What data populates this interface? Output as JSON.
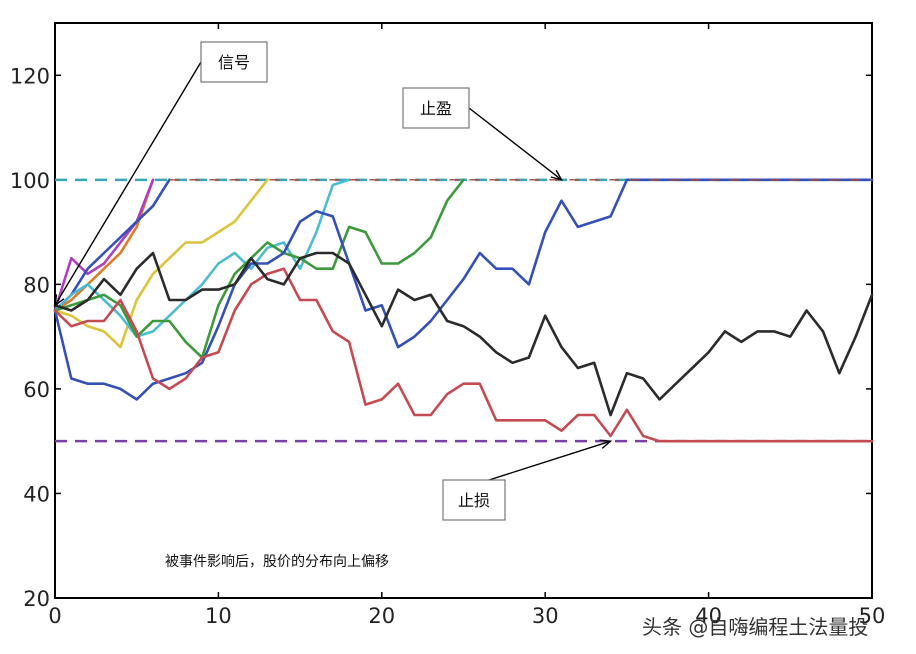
{
  "chart_data": {
    "type": "line",
    "title": "",
    "xlabel": "",
    "ylabel": "",
    "xlim": [
      0,
      50
    ],
    "ylim": [
      20,
      130
    ],
    "xticks": [
      0,
      10,
      20,
      30,
      40,
      50
    ],
    "yticks": [
      20,
      40,
      60,
      80,
      100,
      120
    ],
    "grid": false,
    "reference_lines": [
      {
        "name": "take_profit",
        "y": 100,
        "color": "#3aa6b9",
        "style": "dashed"
      },
      {
        "name": "stop_loss",
        "y": 50,
        "color": "#7b3fa8",
        "style": "dashed"
      }
    ],
    "callouts": [
      {
        "label": "信号",
        "target": [
          0,
          76
        ]
      },
      {
        "label": "止盈",
        "target": [
          31,
          100
        ]
      },
      {
        "label": "止损",
        "target": [
          34,
          50
        ]
      }
    ],
    "annotation": "被事件影响后，股价的分布向上偏移",
    "series": [
      {
        "color": "#e07b2a",
        "values": [
          [
            0,
            75
          ],
          [
            1,
            77
          ],
          [
            2,
            80
          ],
          [
            3,
            83
          ],
          [
            4,
            86
          ],
          [
            5,
            91
          ],
          [
            6,
            100
          ]
        ]
      },
      {
        "color": "#b03fbf",
        "values": [
          [
            0,
            75
          ],
          [
            1,
            85
          ],
          [
            2,
            82
          ],
          [
            3,
            84
          ],
          [
            4,
            88
          ],
          [
            5,
            92
          ],
          [
            6,
            100
          ]
        ]
      },
      {
        "color": "#3550b8",
        "values": [
          [
            0,
            75
          ],
          [
            1,
            78
          ],
          [
            2,
            83
          ],
          [
            3,
            86
          ],
          [
            4,
            89
          ],
          [
            5,
            92
          ],
          [
            6,
            95
          ],
          [
            7,
            100
          ]
        ]
      },
      {
        "color": "#dcc43c",
        "values": [
          [
            0,
            75
          ],
          [
            1,
            74
          ],
          [
            2,
            72
          ],
          [
            3,
            71
          ],
          [
            4,
            68
          ],
          [
            5,
            77
          ],
          [
            6,
            82
          ],
          [
            7,
            85
          ],
          [
            8,
            88
          ],
          [
            9,
            88
          ],
          [
            10,
            90
          ],
          [
            11,
            92
          ],
          [
            12,
            96
          ],
          [
            13,
            100
          ]
        ]
      },
      {
        "color": "#4cbcd0",
        "values": [
          [
            0,
            75
          ],
          [
            1,
            78
          ],
          [
            2,
            80
          ],
          [
            3,
            77
          ],
          [
            4,
            74
          ],
          [
            5,
            70
          ],
          [
            6,
            71
          ],
          [
            7,
            74
          ],
          [
            8,
            77
          ],
          [
            9,
            80
          ],
          [
            10,
            84
          ],
          [
            11,
            86
          ],
          [
            12,
            83
          ],
          [
            13,
            87
          ],
          [
            14,
            88
          ],
          [
            15,
            83
          ],
          [
            16,
            90
          ],
          [
            17,
            99
          ],
          [
            18,
            100
          ]
        ]
      },
      {
        "color": "#3d9a3c",
        "values": [
          [
            0,
            75
          ],
          [
            1,
            76
          ],
          [
            2,
            77
          ],
          [
            3,
            78
          ],
          [
            4,
            76
          ],
          [
            5,
            70
          ],
          [
            6,
            73
          ],
          [
            7,
            73
          ],
          [
            8,
            69
          ],
          [
            9,
            66
          ],
          [
            10,
            76
          ],
          [
            11,
            82
          ],
          [
            12,
            85
          ],
          [
            13,
            88
          ],
          [
            14,
            86
          ],
          [
            15,
            85
          ],
          [
            16,
            83
          ],
          [
            17,
            83
          ],
          [
            18,
            91
          ],
          [
            19,
            90
          ],
          [
            20,
            84
          ],
          [
            21,
            84
          ],
          [
            22,
            86
          ],
          [
            23,
            89
          ],
          [
            24,
            96
          ],
          [
            25,
            100
          ]
        ]
      },
      {
        "color": "#3550b8",
        "values": [
          [
            0,
            75
          ],
          [
            1,
            62
          ],
          [
            2,
            61
          ],
          [
            3,
            61
          ],
          [
            4,
            60
          ],
          [
            5,
            58
          ],
          [
            6,
            61
          ],
          [
            7,
            62
          ],
          [
            8,
            63
          ],
          [
            9,
            65
          ],
          [
            10,
            72
          ],
          [
            11,
            80
          ],
          [
            12,
            84
          ],
          [
            13,
            84
          ],
          [
            14,
            86
          ],
          [
            15,
            92
          ],
          [
            16,
            94
          ],
          [
            17,
            93
          ],
          [
            18,
            84
          ],
          [
            19,
            75
          ],
          [
            20,
            76
          ],
          [
            21,
            68
          ],
          [
            22,
            70
          ],
          [
            23,
            73
          ],
          [
            24,
            77
          ],
          [
            25,
            81
          ],
          [
            26,
            86
          ],
          [
            27,
            83
          ],
          [
            28,
            83
          ],
          [
            29,
            80
          ],
          [
            30,
            90
          ],
          [
            31,
            96
          ],
          [
            32,
            91
          ],
          [
            33,
            92
          ],
          [
            34,
            93
          ],
          [
            35,
            100
          ],
          [
            50,
            100
          ]
        ]
      },
      {
        "color": "#c44b52",
        "values": [
          [
            0,
            75
          ],
          [
            1,
            72
          ],
          [
            2,
            73
          ],
          [
            3,
            73
          ],
          [
            4,
            77
          ],
          [
            5,
            71
          ],
          [
            6,
            62
          ],
          [
            7,
            60
          ],
          [
            8,
            62
          ],
          [
            9,
            66
          ],
          [
            10,
            67
          ],
          [
            11,
            75
          ],
          [
            12,
            80
          ],
          [
            13,
            82
          ],
          [
            14,
            83
          ],
          [
            15,
            77
          ],
          [
            16,
            77
          ],
          [
            17,
            71
          ],
          [
            18,
            69
          ],
          [
            19,
            57
          ],
          [
            20,
            58
          ],
          [
            21,
            61
          ],
          [
            22,
            55
          ],
          [
            23,
            55
          ],
          [
            24,
            59
          ],
          [
            25,
            61
          ],
          [
            26,
            61
          ],
          [
            27,
            54
          ],
          [
            28,
            54
          ],
          [
            29,
            54
          ],
          [
            30,
            54
          ],
          [
            31,
            52
          ],
          [
            32,
            55
          ],
          [
            33,
            55
          ],
          [
            34,
            51
          ],
          [
            35,
            56
          ],
          [
            36,
            51
          ],
          [
            37,
            50
          ],
          [
            50,
            50
          ]
        ]
      },
      {
        "color": "#2b2b2b",
        "values": [
          [
            0,
            76
          ],
          [
            1,
            75
          ],
          [
            2,
            77
          ],
          [
            3,
            81
          ],
          [
            4,
            78
          ],
          [
            5,
            83
          ],
          [
            6,
            86
          ],
          [
            7,
            77
          ],
          [
            8,
            77
          ],
          [
            9,
            79
          ],
          [
            10,
            79
          ],
          [
            11,
            80
          ],
          [
            12,
            85
          ],
          [
            13,
            81
          ],
          [
            14,
            80
          ],
          [
            15,
            85
          ],
          [
            16,
            86
          ],
          [
            17,
            86
          ],
          [
            18,
            84
          ],
          [
            19,
            78
          ],
          [
            20,
            72
          ],
          [
            21,
            79
          ],
          [
            22,
            77
          ],
          [
            23,
            78
          ],
          [
            24,
            73
          ],
          [
            25,
            72
          ],
          [
            26,
            70
          ],
          [
            27,
            67
          ],
          [
            28,
            65
          ],
          [
            29,
            66
          ],
          [
            30,
            74
          ],
          [
            31,
            68
          ],
          [
            32,
            64
          ],
          [
            33,
            65
          ],
          [
            34,
            55
          ],
          [
            35,
            63
          ],
          [
            36,
            62
          ],
          [
            37,
            58
          ],
          [
            38,
            61
          ],
          [
            39,
            64
          ],
          [
            40,
            67
          ],
          [
            41,
            71
          ],
          [
            42,
            69
          ],
          [
            43,
            71
          ],
          [
            44,
            71
          ],
          [
            45,
            70
          ],
          [
            46,
            75
          ],
          [
            47,
            71
          ],
          [
            48,
            63
          ],
          [
            49,
            70
          ],
          [
            50,
            78
          ]
        ]
      }
    ]
  },
  "watermark": "头条 @自嗨编程土法量投"
}
